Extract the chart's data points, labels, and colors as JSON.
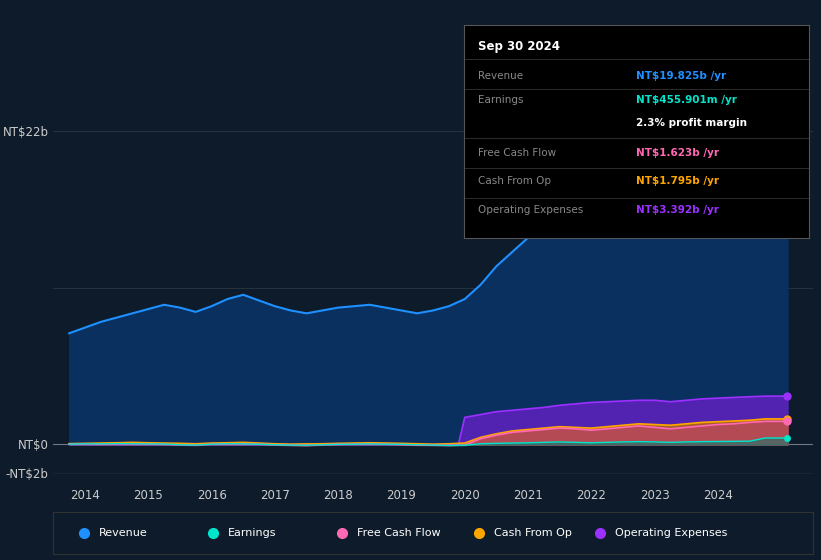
{
  "bg_color": "#0d1b2a",
  "colors": {
    "revenue": "#1e90ff",
    "revenue_fill": "#1a4a7a",
    "earnings": "#00e5cc",
    "fcf": "#ff69b4",
    "cashop": "#ffa500",
    "opex": "#9b30ff"
  },
  "info_box": {
    "date": "Sep 30 2024",
    "revenue_val": "NT$19.825b",
    "revenue_color": "#1e90ff",
    "earnings_val": "NT$455.901m",
    "earnings_color": "#00e5cc",
    "margin": "2.3%",
    "fcf_val": "NT$1.623b",
    "fcf_color": "#ff69b4",
    "cashop_val": "NT$1.795b",
    "cashop_color": "#ffa500",
    "opex_val": "NT$3.392b",
    "opex_color": "#9b30ff"
  },
  "ylabel_top": "NT$22b",
  "ylabel_zero": "NT$0",
  "ylabel_neg": "-NT$2b",
  "ylim": [
    -2.8,
    24.5
  ],
  "xlim": [
    2013.5,
    2025.5
  ],
  "xtick_years": [
    2014,
    2015,
    2016,
    2017,
    2018,
    2019,
    2020,
    2021,
    2022,
    2023,
    2024
  ],
  "revenue_x": [
    2013.75,
    2014.0,
    2014.25,
    2014.5,
    2014.75,
    2015.0,
    2015.25,
    2015.5,
    2015.75,
    2016.0,
    2016.25,
    2016.5,
    2016.75,
    2017.0,
    2017.25,
    2017.5,
    2017.75,
    2018.0,
    2018.25,
    2018.5,
    2018.75,
    2019.0,
    2019.25,
    2019.5,
    2019.75,
    2020.0,
    2020.25,
    2020.5,
    2020.75,
    2021.0,
    2021.25,
    2021.5,
    2021.75,
    2022.0,
    2022.25,
    2022.5,
    2022.75,
    2023.0,
    2023.25,
    2023.5,
    2023.75,
    2024.0,
    2024.25,
    2024.5,
    2024.75,
    2025.1
  ],
  "revenue_y": [
    7.8,
    8.2,
    8.6,
    8.9,
    9.2,
    9.5,
    9.8,
    9.6,
    9.3,
    9.7,
    10.2,
    10.5,
    10.1,
    9.7,
    9.4,
    9.2,
    9.4,
    9.6,
    9.7,
    9.8,
    9.6,
    9.4,
    9.2,
    9.4,
    9.7,
    10.2,
    11.2,
    12.5,
    13.5,
    14.5,
    15.6,
    16.8,
    17.3,
    17.8,
    18.8,
    21.0,
    22.1,
    21.6,
    20.6,
    19.2,
    18.8,
    19.2,
    19.6,
    19.8,
    19.825,
    19.825
  ],
  "earnings_x": [
    2013.75,
    2014.0,
    2014.25,
    2014.5,
    2014.75,
    2015.0,
    2015.25,
    2015.5,
    2015.75,
    2016.0,
    2016.25,
    2016.5,
    2016.75,
    2017.0,
    2017.25,
    2017.5,
    2017.75,
    2018.0,
    2018.25,
    2018.5,
    2018.75,
    2019.0,
    2019.25,
    2019.5,
    2019.75,
    2020.0,
    2020.25,
    2020.5,
    2020.75,
    2021.0,
    2021.25,
    2021.5,
    2021.75,
    2022.0,
    2022.25,
    2022.5,
    2022.75,
    2023.0,
    2023.25,
    2023.5,
    2023.75,
    2024.0,
    2024.25,
    2024.5,
    2024.75,
    2025.1
  ],
  "earnings_y": [
    0.02,
    0.05,
    0.04,
    0.06,
    0.05,
    0.04,
    0.03,
    -0.02,
    -0.04,
    0.02,
    0.05,
    0.04,
    0.02,
    -0.02,
    -0.04,
    -0.05,
    -0.02,
    0.01,
    0.02,
    0.04,
    0.02,
    0.01,
    -0.02,
    -0.04,
    -0.07,
    -0.05,
    0.05,
    0.08,
    0.1,
    0.12,
    0.15,
    0.18,
    0.15,
    0.12,
    0.15,
    0.18,
    0.2,
    0.18,
    0.15,
    0.18,
    0.2,
    0.21,
    0.22,
    0.23,
    0.456,
    0.456
  ],
  "fcf_x": [
    2013.75,
    2014.0,
    2014.25,
    2014.5,
    2014.75,
    2015.0,
    2015.25,
    2015.5,
    2015.75,
    2016.0,
    2016.25,
    2016.5,
    2016.75,
    2017.0,
    2017.25,
    2017.5,
    2017.75,
    2018.0,
    2018.25,
    2018.5,
    2018.75,
    2019.0,
    2019.25,
    2019.5,
    2019.75,
    2020.0,
    2020.25,
    2020.5,
    2020.75,
    2021.0,
    2021.25,
    2021.5,
    2021.75,
    2022.0,
    2022.25,
    2022.5,
    2022.75,
    2023.0,
    2023.25,
    2023.5,
    2023.75,
    2024.0,
    2024.25,
    2024.5,
    2024.75,
    2025.1
  ],
  "fcf_y": [
    0.02,
    0.04,
    0.02,
    0.05,
    0.04,
    0.03,
    0.01,
    -0.02,
    -0.04,
    0.02,
    0.04,
    0.05,
    0.02,
    -0.02,
    -0.05,
    -0.07,
    -0.02,
    0.01,
    0.02,
    0.04,
    0.02,
    -0.01,
    -0.04,
    -0.05,
    -0.06,
    -0.04,
    0.4,
    0.65,
    0.85,
    0.95,
    1.05,
    1.15,
    1.1,
    1.0,
    1.1,
    1.2,
    1.3,
    1.2,
    1.1,
    1.2,
    1.3,
    1.4,
    1.45,
    1.55,
    1.623,
    1.623
  ],
  "cashop_x": [
    2013.75,
    2014.0,
    2014.25,
    2014.5,
    2014.75,
    2015.0,
    2015.25,
    2015.5,
    2015.75,
    2016.0,
    2016.25,
    2016.5,
    2016.75,
    2017.0,
    2017.25,
    2017.5,
    2017.75,
    2018.0,
    2018.25,
    2018.5,
    2018.75,
    2019.0,
    2019.25,
    2019.5,
    2019.75,
    2020.0,
    2020.25,
    2020.5,
    2020.75,
    2021.0,
    2021.25,
    2021.5,
    2021.75,
    2022.0,
    2022.25,
    2022.5,
    2022.75,
    2023.0,
    2023.25,
    2023.5,
    2023.75,
    2024.0,
    2024.25,
    2024.5,
    2024.75,
    2025.1
  ],
  "cashop_y": [
    0.06,
    0.08,
    0.1,
    0.12,
    0.15,
    0.12,
    0.1,
    0.08,
    0.05,
    0.1,
    0.12,
    0.15,
    0.1,
    0.05,
    0.02,
    0.04,
    0.05,
    0.08,
    0.1,
    0.12,
    0.1,
    0.08,
    0.05,
    0.02,
    0.05,
    0.1,
    0.5,
    0.75,
    0.95,
    1.05,
    1.15,
    1.25,
    1.2,
    1.15,
    1.25,
    1.35,
    1.45,
    1.4,
    1.35,
    1.45,
    1.55,
    1.6,
    1.65,
    1.7,
    1.795,
    1.795
  ],
  "opex_x": [
    2013.75,
    2014.0,
    2014.25,
    2014.5,
    2014.75,
    2015.0,
    2015.25,
    2015.5,
    2015.75,
    2016.0,
    2016.25,
    2016.5,
    2016.75,
    2017.0,
    2017.25,
    2017.5,
    2017.75,
    2018.0,
    2018.25,
    2018.5,
    2018.75,
    2019.0,
    2019.25,
    2019.5,
    2019.75,
    2019.9,
    2020.0,
    2020.25,
    2020.5,
    2020.75,
    2021.0,
    2021.25,
    2021.5,
    2021.75,
    2022.0,
    2022.25,
    2022.5,
    2022.75,
    2023.0,
    2023.25,
    2023.5,
    2023.75,
    2024.0,
    2024.25,
    2024.5,
    2024.75,
    2025.1
  ],
  "opex_y": [
    0.0,
    0.0,
    0.0,
    0.0,
    0.0,
    0.0,
    0.0,
    0.0,
    0.0,
    0.0,
    0.0,
    0.0,
    0.0,
    0.0,
    0.0,
    0.0,
    0.0,
    0.0,
    0.0,
    0.0,
    0.0,
    0.0,
    0.0,
    0.0,
    0.0,
    0.0,
    1.9,
    2.1,
    2.3,
    2.4,
    2.5,
    2.6,
    2.75,
    2.85,
    2.95,
    3.0,
    3.05,
    3.1,
    3.1,
    3.0,
    3.1,
    3.2,
    3.25,
    3.3,
    3.35,
    3.392,
    3.392
  ]
}
